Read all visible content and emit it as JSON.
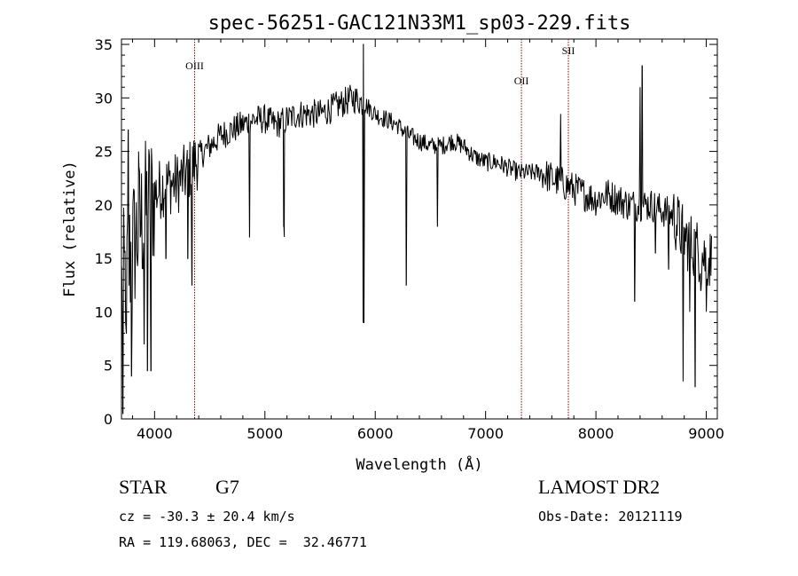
{
  "chart_data": {
    "type": "line",
    "title": "spec-56251-GAC121N33M1_sp03-229.fits",
    "xlabel": "Wavelength (Å)",
    "ylabel": "Flux (relative)",
    "xlim": [
      3700,
      9100
    ],
    "ylim": [
      0,
      35.5
    ],
    "xticks": [
      4000,
      5000,
      6000,
      7000,
      8000,
      9000
    ],
    "yticks": [
      0,
      5,
      10,
      15,
      20,
      25,
      30,
      35
    ],
    "grid": false,
    "line_color": "#000000",
    "marker_color": "#8b0000",
    "lines": [
      {
        "label": "OIII",
        "wavelength": 4363
      },
      {
        "label": "OII",
        "wavelength": 7325
      },
      {
        "label": "SII",
        "wavelength": 7750
      }
    ],
    "continuum": [
      [
        3700,
        12
      ],
      [
        3800,
        16
      ],
      [
        3900,
        19
      ],
      [
        4000,
        21
      ],
      [
        4100,
        22
      ],
      [
        4200,
        22
      ],
      [
        4300,
        23
      ],
      [
        4400,
        24.5
      ],
      [
        4500,
        25.5
      ],
      [
        4600,
        26.5
      ],
      [
        4700,
        27
      ],
      [
        4800,
        27.5
      ],
      [
        4900,
        28
      ],
      [
        5000,
        28
      ],
      [
        5100,
        27.5
      ],
      [
        5200,
        28
      ],
      [
        5300,
        28.5
      ],
      [
        5400,
        28.5
      ],
      [
        5500,
        28.5
      ],
      [
        5600,
        29
      ],
      [
        5700,
        29.5
      ],
      [
        5800,
        30
      ],
      [
        5900,
        29.5
      ],
      [
        6000,
        28.5
      ],
      [
        6100,
        28
      ],
      [
        6200,
        27.5
      ],
      [
        6300,
        26.5
      ],
      [
        6400,
        26
      ],
      [
        6500,
        25.5
      ],
      [
        6600,
        25.5
      ],
      [
        6700,
        26
      ],
      [
        6800,
        25.5
      ],
      [
        6900,
        24.5
      ],
      [
        7000,
        24
      ],
      [
        7100,
        24
      ],
      [
        7200,
        23.5
      ],
      [
        7300,
        23
      ],
      [
        7400,
        23
      ],
      [
        7500,
        23
      ],
      [
        7600,
        22.5
      ],
      [
        7700,
        22
      ],
      [
        7800,
        21.5
      ],
      [
        7900,
        21
      ],
      [
        8000,
        20.5
      ],
      [
        8100,
        21
      ],
      [
        8200,
        20.5
      ],
      [
        8300,
        20
      ],
      [
        8400,
        20
      ],
      [
        8500,
        20
      ],
      [
        8600,
        19.5
      ],
      [
        8700,
        19
      ],
      [
        8800,
        17
      ],
      [
        8900,
        16
      ],
      [
        9000,
        15
      ],
      [
        9100,
        15
      ]
    ],
    "features": [
      [
        3712,
        0.5
      ],
      [
        3745,
        8
      ],
      [
        3760,
        27
      ],
      [
        3790,
        4
      ],
      [
        3855,
        25
      ],
      [
        3905,
        7
      ],
      [
        3935,
        4.5
      ],
      [
        3968,
        4.5
      ],
      [
        4102,
        15
      ],
      [
        4300,
        15
      ],
      [
        4340,
        12.5
      ],
      [
        4861,
        17
      ],
      [
        5170,
        18
      ],
      [
        5175,
        17
      ],
      [
        5890,
        9
      ],
      [
        5893,
        35
      ],
      [
        5896,
        9
      ],
      [
        6280,
        12.5
      ],
      [
        6563,
        18
      ],
      [
        7680,
        28.5
      ],
      [
        8350,
        11
      ],
      [
        8400,
        31
      ],
      [
        8420,
        33
      ],
      [
        8460,
        20
      ],
      [
        8540,
        15.5
      ],
      [
        8660,
        14
      ],
      [
        8790,
        3.5
      ],
      [
        8850,
        10
      ],
      [
        8900,
        3
      ],
      [
        8950,
        12
      ],
      [
        9000,
        10
      ]
    ]
  },
  "info": {
    "object_class": "STAR",
    "subclass": "G7",
    "survey": "LAMOST DR2",
    "cz": "cz = -30.3 ± 20.4 km/s",
    "obs_date": "Obs-Date: 20121119",
    "coords": "RA = 119.68063, DEC =  32.46771"
  }
}
